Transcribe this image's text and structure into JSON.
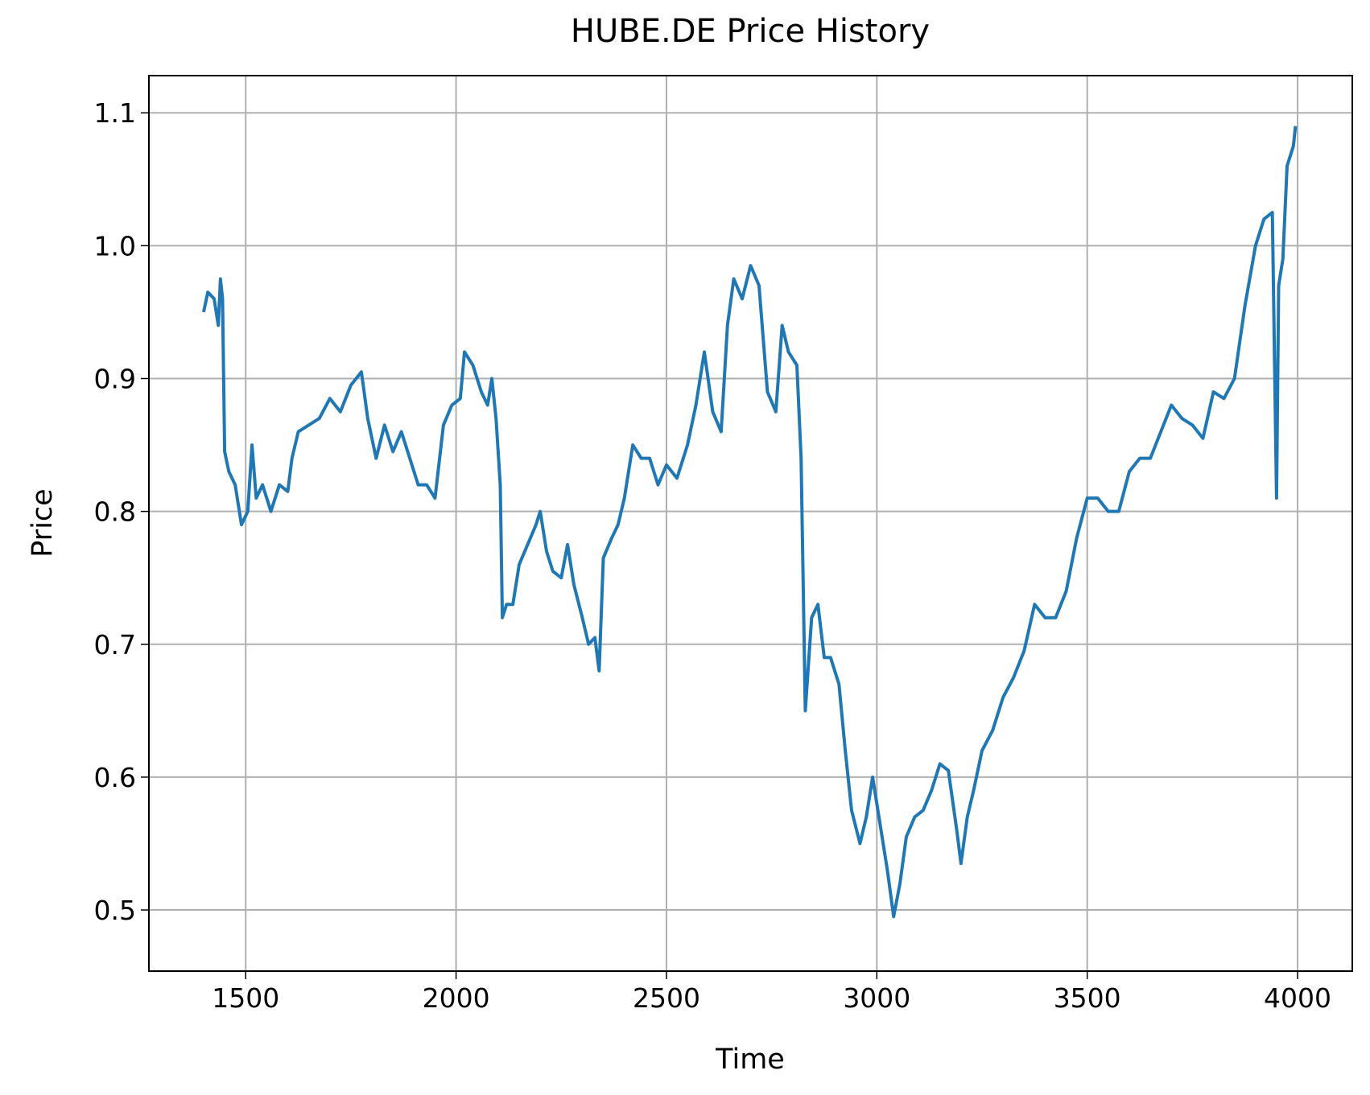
{
  "chart_data": {
    "type": "line",
    "title": "HUBE.DE Price History",
    "x_label": "Time",
    "y_label": "Price",
    "x": [
      1400,
      1410,
      1425,
      1435,
      1440,
      1445,
      1450,
      1460,
      1475,
      1490,
      1505,
      1515,
      1525,
      1540,
      1560,
      1580,
      1600,
      1610,
      1625,
      1650,
      1675,
      1700,
      1725,
      1750,
      1775,
      1790,
      1810,
      1830,
      1850,
      1870,
      1890,
      1910,
      1930,
      1950,
      1970,
      1990,
      2010,
      2020,
      2040,
      2060,
      2075,
      2085,
      2095,
      2105,
      2110,
      2120,
      2135,
      2150,
      2170,
      2190,
      2200,
      2215,
      2230,
      2250,
      2265,
      2280,
      2300,
      2315,
      2330,
      2340,
      2350,
      2370,
      2385,
      2400,
      2420,
      2440,
      2460,
      2480,
      2500,
      2525,
      2550,
      2570,
      2590,
      2610,
      2630,
      2645,
      2660,
      2680,
      2700,
      2720,
      2740,
      2760,
      2775,
      2790,
      2810,
      2820,
      2830,
      2845,
      2860,
      2875,
      2890,
      2910,
      2925,
      2940,
      2960,
      2975,
      2990,
      3010,
      3025,
      3040,
      3055,
      3070,
      3090,
      3110,
      3130,
      3150,
      3170,
      3190,
      3200,
      3215,
      3230,
      3250,
      3275,
      3300,
      3325,
      3350,
      3375,
      3400,
      3425,
      3450,
      3475,
      3500,
      3525,
      3550,
      3575,
      3600,
      3625,
      3650,
      3675,
      3700,
      3725,
      3750,
      3775,
      3800,
      3825,
      3850,
      3875,
      3900,
      3920,
      3940,
      3950,
      3955,
      3965,
      3975,
      3990,
      3995
    ],
    "series": [
      {
        "name": "Price",
        "color": "#1f77b4",
        "values": [
          0.95,
          0.965,
          0.96,
          0.94,
          0.975,
          0.96,
          0.845,
          0.83,
          0.82,
          0.79,
          0.8,
          0.85,
          0.81,
          0.82,
          0.8,
          0.82,
          0.815,
          0.84,
          0.86,
          0.865,
          0.87,
          0.885,
          0.875,
          0.895,
          0.905,
          0.87,
          0.84,
          0.865,
          0.845,
          0.86,
          0.84,
          0.82,
          0.82,
          0.81,
          0.865,
          0.88,
          0.885,
          0.92,
          0.91,
          0.89,
          0.88,
          0.9,
          0.87,
          0.82,
          0.72,
          0.73,
          0.73,
          0.76,
          0.775,
          0.79,
          0.8,
          0.77,
          0.755,
          0.75,
          0.775,
          0.745,
          0.72,
          0.7,
          0.705,
          0.68,
          0.765,
          0.78,
          0.79,
          0.81,
          0.85,
          0.84,
          0.84,
          0.82,
          0.835,
          0.825,
          0.85,
          0.88,
          0.92,
          0.875,
          0.86,
          0.94,
          0.975,
          0.96,
          0.985,
          0.97,
          0.89,
          0.875,
          0.94,
          0.92,
          0.91,
          0.84,
          0.65,
          0.72,
          0.73,
          0.69,
          0.69,
          0.67,
          0.62,
          0.575,
          0.55,
          0.57,
          0.6,
          0.56,
          0.53,
          0.495,
          0.52,
          0.555,
          0.57,
          0.575,
          0.59,
          0.61,
          0.605,
          0.56,
          0.535,
          0.57,
          0.59,
          0.62,
          0.635,
          0.66,
          0.675,
          0.695,
          0.73,
          0.72,
          0.72,
          0.74,
          0.78,
          0.81,
          0.81,
          0.8,
          0.8,
          0.83,
          0.84,
          0.84,
          0.86,
          0.88,
          0.87,
          0.865,
          0.855,
          0.89,
          0.885,
          0.9,
          0.955,
          1.0,
          1.02,
          1.025,
          0.81,
          0.97,
          0.99,
          1.06,
          1.075,
          1.09
        ]
      }
    ],
    "xlim": [
      1270,
      4130
    ],
    "ylim": [
      0.454,
      1.128
    ],
    "xticks": [
      1500,
      2000,
      2500,
      3000,
      3500,
      4000
    ],
    "yticks": [
      0.5,
      0.6,
      0.7,
      0.8,
      0.9,
      {
        "value": 1.0,
        "label": "1.0"
      },
      1.1
    ],
    "grid": true
  }
}
